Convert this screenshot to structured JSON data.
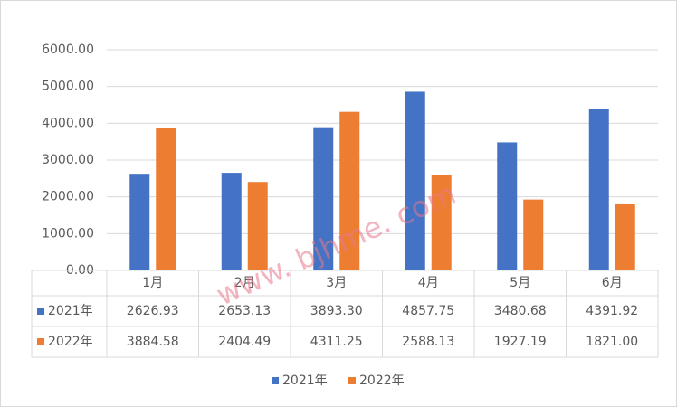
{
  "chart_data": {
    "type": "bar",
    "categories": [
      "1月",
      "2月",
      "3月",
      "4月",
      "5月",
      "6月"
    ],
    "series": [
      {
        "name": "2021年",
        "color": "#4472c4",
        "values": [
          2626.93,
          2653.13,
          3893.3,
          4857.75,
          3480.68,
          4391.92
        ],
        "value_labels": [
          "2626.93",
          "2653.13",
          "3893.30",
          "4857.75",
          "3480.68",
          "4391.92"
        ]
      },
      {
        "name": "2022年",
        "color": "#ed7d31",
        "values": [
          3884.58,
          2404.49,
          4311.25,
          2588.13,
          1927.19,
          1821
        ],
        "value_labels": [
          "3884.58",
          "2404.49",
          "4311.25",
          "2588.13",
          "1927.19",
          "1821.00"
        ]
      }
    ],
    "ylim": [
      0,
      6000
    ],
    "yticks": [
      {
        "value": 0,
        "label": "0.00"
      },
      {
        "value": 1000,
        "label": "1000.00"
      },
      {
        "value": 2000,
        "label": "2000.00"
      },
      {
        "value": 3000,
        "label": "3000.00"
      },
      {
        "value": 4000,
        "label": "4000.00"
      },
      {
        "value": 5000,
        "label": "5000.00"
      },
      {
        "value": 6000,
        "label": "6000.00"
      }
    ],
    "grid": true,
    "legend": "bottom",
    "data_table": true,
    "watermark": "www. bjhme. com"
  }
}
